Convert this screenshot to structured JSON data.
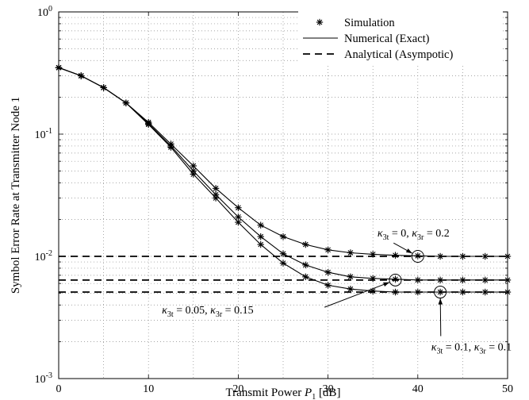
{
  "chart_data": {
    "type": "line",
    "title": "",
    "xlabel": "Transmit Power P1 [dB]",
    "ylabel": "Symbol Error Rate at Transmitter Node 1",
    "x_scale": "linear",
    "y_scale": "log",
    "xlim": [
      0,
      50
    ],
    "ylim": [
      0.001,
      1
    ],
    "xticks": [
      0,
      10,
      20,
      30,
      40,
      50
    ],
    "yticks": [
      0.001,
      0.01,
      0.1,
      1
    ],
    "grid": true,
    "legend_position": "top-right",
    "legend": [
      {
        "label": "Simulation",
        "style": "asterisk-marker"
      },
      {
        "label": "Numerical (Exact)",
        "style": "solid"
      },
      {
        "label": "Analytical (Asympotic)",
        "style": "dashed"
      }
    ],
    "series": [
      {
        "name": "κ3t = 0, κ3r = 0.2",
        "x": [
          0,
          2.5,
          5,
          7.5,
          10,
          12.5,
          15,
          17.5,
          20,
          22.5,
          25,
          27.5,
          30,
          32.5,
          35,
          37.5,
          40,
          42.5,
          45,
          47.5,
          50
        ],
        "y": [
          0.35,
          0.3,
          0.24,
          0.18,
          0.125,
          0.083,
          0.055,
          0.036,
          0.025,
          0.018,
          0.0145,
          0.0125,
          0.0113,
          0.0107,
          0.0104,
          0.0102,
          0.0101,
          0.01,
          0.01,
          0.01,
          0.01
        ],
        "asymptote": 0.01
      },
      {
        "name": "κ3t = 0.05, κ3r = 0.15",
        "x": [
          0,
          2.5,
          5,
          7.5,
          10,
          12.5,
          15,
          17.5,
          20,
          22.5,
          25,
          27.5,
          30,
          32.5,
          35,
          37.5,
          40,
          42.5,
          45,
          47.5,
          50
        ],
        "y": [
          0.35,
          0.3,
          0.24,
          0.18,
          0.122,
          0.08,
          0.05,
          0.032,
          0.021,
          0.0145,
          0.0105,
          0.0085,
          0.0074,
          0.0068,
          0.0066,
          0.0065,
          0.0064,
          0.0064,
          0.0064,
          0.0064,
          0.0064
        ],
        "asymptote": 0.0064
      },
      {
        "name": "κ3t = 0.1, κ3r = 0.1",
        "x": [
          0,
          2.5,
          5,
          7.5,
          10,
          12.5,
          15,
          17.5,
          20,
          22.5,
          25,
          27.5,
          30,
          32.5,
          35,
          37.5,
          40,
          42.5,
          45,
          47.5,
          50
        ],
        "y": [
          0.35,
          0.3,
          0.24,
          0.18,
          0.12,
          0.078,
          0.047,
          0.03,
          0.019,
          0.0125,
          0.0088,
          0.0068,
          0.0058,
          0.0054,
          0.0052,
          0.0051,
          0.0051,
          0.0051,
          0.0051,
          0.0051,
          0.0051
        ],
        "asymptote": 0.0051
      }
    ],
    "annotations": [
      {
        "kappa_t": "0",
        "kappa_r": "0.2",
        "series": 0,
        "circle_x": 40,
        "text_x": 35.5,
        "text_y": 0.0145
      },
      {
        "kappa_t": "0.05",
        "kappa_r": "0.15",
        "series": 1,
        "circle_x": 37.5,
        "text_x": 11.5,
        "text_y": 0.0034
      },
      {
        "kappa_t": "0.1",
        "kappa_r": "0.1",
        "series": 2,
        "circle_x": 42.5,
        "text_x": 41.5,
        "text_y": 0.0017
      }
    ]
  }
}
